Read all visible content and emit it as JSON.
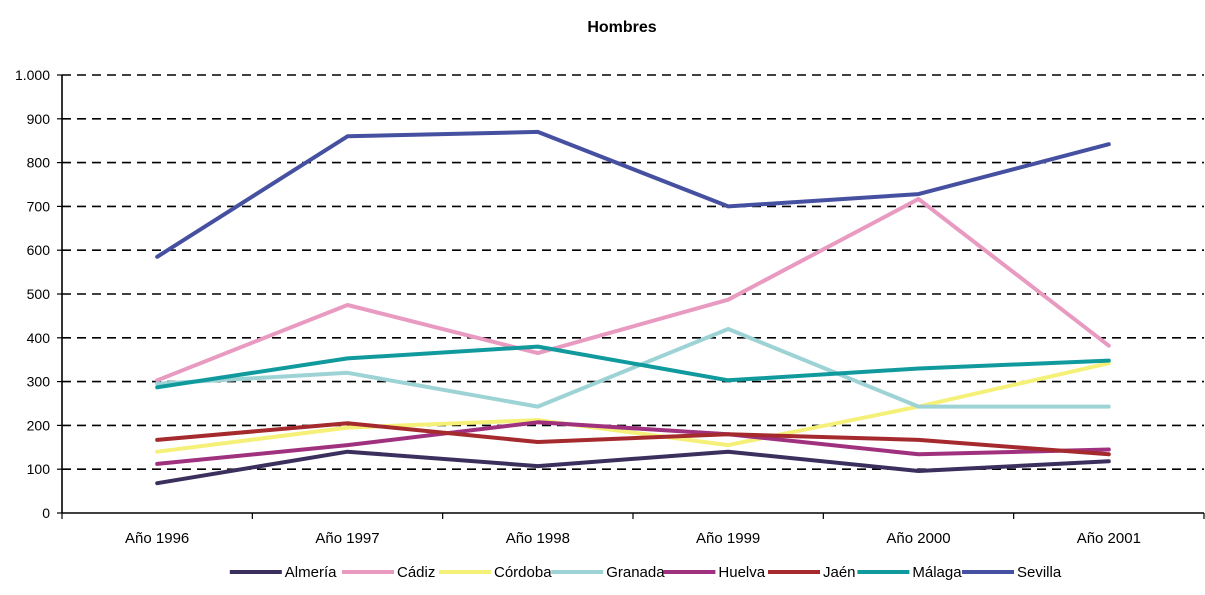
{
  "chart_data": {
    "type": "line",
    "title": "Hombres",
    "xlabel": "",
    "ylabel": "",
    "categories": [
      "Año 1996",
      "Año 1997",
      "Año 1998",
      "Año 1999",
      "Año 2000",
      "Año 2001"
    ],
    "ylim": [
      0,
      1000
    ],
    "yticks": [
      0,
      100,
      200,
      300,
      400,
      500,
      600,
      700,
      800,
      900,
      1000
    ],
    "ytick_labels": [
      "0",
      "100",
      "200",
      "300",
      "400",
      "500",
      "600",
      "700",
      "800",
      "900",
      "1.000"
    ],
    "grid": "horizontal dashed",
    "legend_position": "bottom",
    "series": [
      {
        "name": "Almería",
        "color": "#3b2f5e",
        "values": [
          68,
          140,
          107,
          140,
          96,
          118
        ]
      },
      {
        "name": "Cádiz",
        "color": "#e89ac0",
        "values": [
          303,
          475,
          365,
          487,
          717,
          382
        ]
      },
      {
        "name": "Córdoba",
        "color": "#f5f078",
        "values": [
          140,
          195,
          212,
          155,
          243,
          342
        ]
      },
      {
        "name": "Granada",
        "color": "#9ed3d6",
        "values": [
          295,
          320,
          243,
          420,
          243,
          243
        ]
      },
      {
        "name": "Huelva",
        "color": "#a0317f",
        "values": [
          112,
          155,
          207,
          180,
          134,
          145
        ]
      },
      {
        "name": "Jaén",
        "color": "#a52a2e",
        "values": [
          167,
          205,
          162,
          180,
          167,
          134
        ]
      },
      {
        "name": "Málaga",
        "color": "#119a9d",
        "values": [
          287,
          353,
          380,
          303,
          330,
          348
        ]
      },
      {
        "name": "Sevilla",
        "color": "#4650a0",
        "values": [
          585,
          860,
          870,
          700,
          728,
          842
        ]
      }
    ]
  }
}
